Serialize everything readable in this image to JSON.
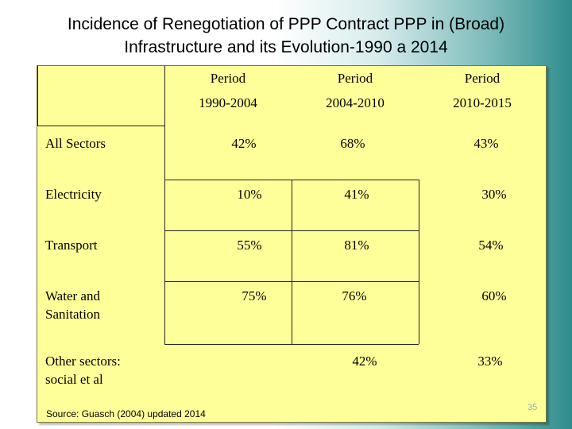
{
  "slide": {
    "title_line1": "Incidence of  Renegotiation of PPP Contract PPP in (Broad)",
    "title_line2": "Infrastructure and its Evolution-1990 a 2014",
    "columns": [
      {
        "line1": "Period",
        "line2": "1990-2004"
      },
      {
        "line1": "Period",
        "line2": "2004-2010"
      },
      {
        "line1": "Period",
        "line2": "2010-2015"
      }
    ],
    "rows": [
      {
        "label_line1": "All Sectors",
        "label_line2": "",
        "values": [
          "42%",
          "68%",
          "43%"
        ]
      },
      {
        "label_line1": "Electricity",
        "label_line2": "",
        "values": [
          "10%",
          "41%",
          "30%"
        ]
      },
      {
        "label_line1": "Transport",
        "label_line2": "",
        "values": [
          "55%",
          "81%",
          "54%"
        ]
      },
      {
        "label_line1": "Water and",
        "label_line2": "Sanitation",
        "values": [
          "75%",
          "76%",
          "60%"
        ]
      },
      {
        "label_line1": "Other sectors:",
        "label_line2": "social et al",
        "values": [
          "",
          "42%",
          "33%"
        ]
      }
    ],
    "source": "Source:  Guasch (2004)  updated 2014",
    "page_number": "35"
  },
  "colors": {
    "panel": "#ffff99",
    "teal_edge": "#2f8c8c"
  }
}
